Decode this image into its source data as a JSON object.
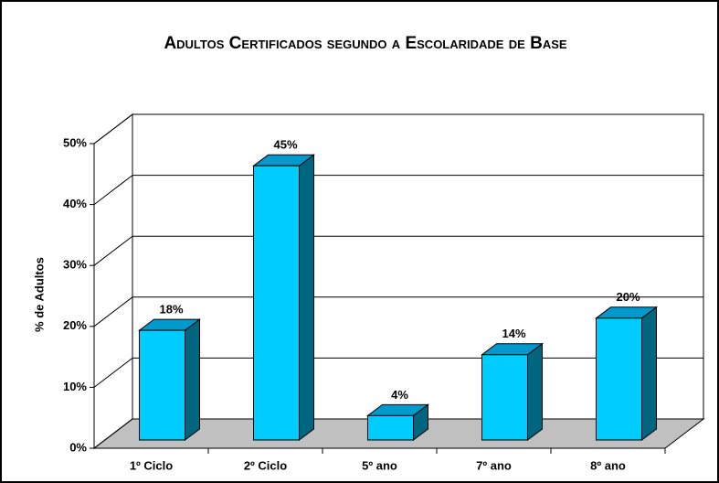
{
  "chart_data": {
    "type": "bar3d",
    "title": "Adultos Certificados segundo a Escolaridade de Base",
    "y_label": "% de Adultos",
    "categories": [
      "1º Ciclo",
      "2º Ciclo",
      "5º ano",
      "7º ano",
      "8º ano"
    ],
    "values": [
      18,
      45,
      4,
      14,
      20
    ],
    "value_labels": [
      "18%",
      "45%",
      "4%",
      "14%",
      "20%"
    ],
    "color": "#00ccff",
    "ylim": [
      0,
      50
    ],
    "yticks": [
      {
        "value": 0,
        "label": "0%"
      },
      {
        "value": 10,
        "label": "10%"
      },
      {
        "value": 20,
        "label": "20%"
      },
      {
        "value": 30,
        "label": "30%"
      },
      {
        "value": 40,
        "label": "40%"
      },
      {
        "value": 50,
        "label": "50%"
      }
    ],
    "grid": true
  }
}
